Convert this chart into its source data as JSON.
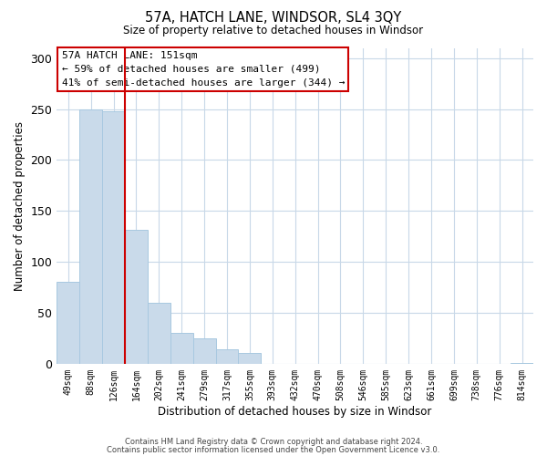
{
  "title": "57A, HATCH LANE, WINDSOR, SL4 3QY",
  "subtitle": "Size of property relative to detached houses in Windsor",
  "xlabel": "Distribution of detached houses by size in Windsor",
  "ylabel": "Number of detached properties",
  "categories": [
    "49sqm",
    "88sqm",
    "126sqm",
    "164sqm",
    "202sqm",
    "241sqm",
    "279sqm",
    "317sqm",
    "355sqm",
    "393sqm",
    "432sqm",
    "470sqm",
    "508sqm",
    "546sqm",
    "585sqm",
    "623sqm",
    "661sqm",
    "699sqm",
    "738sqm",
    "776sqm",
    "814sqm"
  ],
  "values": [
    80,
    250,
    248,
    131,
    60,
    30,
    25,
    14,
    11,
    0,
    0,
    0,
    0,
    0,
    0,
    0,
    0,
    0,
    0,
    0,
    1
  ],
  "bar_color": "#c9daea",
  "bar_edgecolor": "#a8c8e0",
  "vline_color": "#cc0000",
  "vline_x_index": 2.5,
  "annotation_lines": [
    "57A HATCH LANE: 151sqm",
    "← 59% of detached houses are smaller (499)",
    "41% of semi-detached houses are larger (344) →"
  ],
  "box_edgecolor": "#cc0000",
  "ylim": [
    0,
    310
  ],
  "yticks": [
    0,
    50,
    100,
    150,
    200,
    250,
    300
  ],
  "footer1": "Contains HM Land Registry data © Crown copyright and database right 2024.",
  "footer2": "Contains public sector information licensed under the Open Government Licence v3.0.",
  "background_color": "#ffffff",
  "grid_color": "#c8d8e8"
}
